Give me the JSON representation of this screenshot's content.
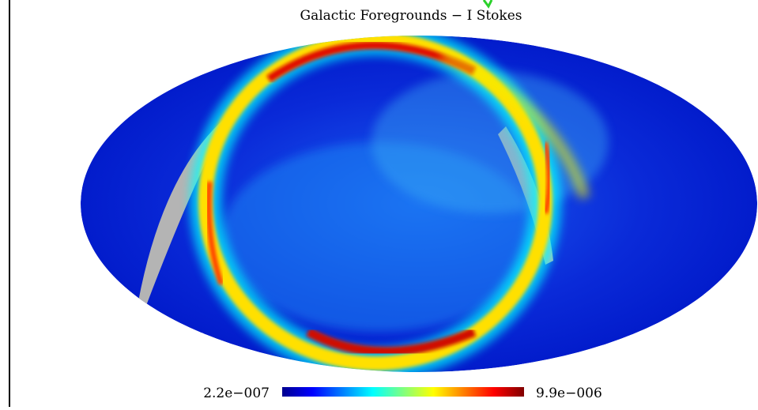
{
  "figure": {
    "title": "Galactic Foregrounds − I Stokes",
    "colorbar": {
      "min_label": "2.2e−007",
      "max_label": "9.9e−006"
    }
  }
}
